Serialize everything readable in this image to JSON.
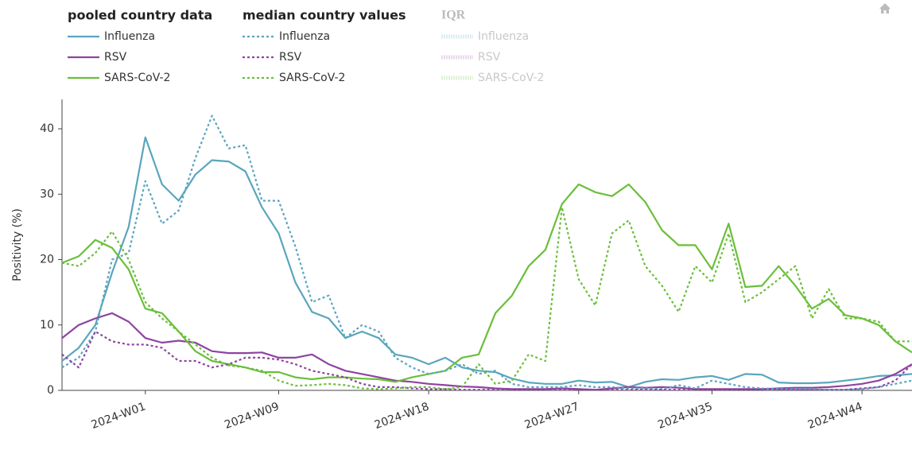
{
  "chart_data": {
    "type": "line",
    "y_label": "Positivity (%)",
    "xlim": [
      -5,
      46
    ],
    "ylim": [
      0,
      44.5
    ],
    "yticks": [
      0,
      10,
      20,
      30,
      40
    ],
    "xticks": [
      {
        "value": 0,
        "label": "2024-W01"
      },
      {
        "value": 8,
        "label": "2024-W09"
      },
      {
        "value": 17,
        "label": "2024-W18"
      },
      {
        "value": 26,
        "label": "2024-W27"
      },
      {
        "value": 34,
        "label": "2024-W35"
      },
      {
        "value": 43,
        "label": "2024-W44"
      }
    ],
    "x": [
      -5,
      -4,
      -3,
      -2,
      -1,
      0,
      1,
      2,
      3,
      4,
      5,
      6,
      7,
      8,
      9,
      10,
      11,
      12,
      13,
      14,
      15,
      16,
      17,
      18,
      19,
      20,
      21,
      22,
      23,
      24,
      25,
      26,
      27,
      28,
      29,
      30,
      31,
      32,
      33,
      34,
      35,
      36,
      37,
      38,
      39,
      40,
      41,
      42,
      43,
      44,
      45,
      46
    ],
    "legend_groups": [
      {
        "title": "pooled country data",
        "dash": "solid"
      },
      {
        "title": "median country values",
        "dash": "dotted"
      },
      {
        "title": "IQR",
        "hidden": true,
        "entries": [
          "Influenza",
          "RSV",
          "SARS-CoV-2"
        ]
      }
    ],
    "series": [
      {
        "name": "Influenza",
        "group": 0,
        "color": "#5aa5be",
        "values": [
          4.5,
          6.5,
          10,
          18,
          25,
          38.7,
          31.5,
          29,
          33,
          35.2,
          35,
          33.5,
          28,
          24,
          16.5,
          12,
          11,
          8,
          9,
          8,
          5.5,
          5,
          4,
          5,
          3.5,
          3,
          2.8,
          1.8,
          1.2,
          1,
          1,
          1.5,
          1.2,
          1.3,
          0.5,
          1.3,
          1.7,
          1.6,
          2,
          2.2,
          1.6,
          2.5,
          2.4,
          1.2,
          1.1,
          1.1,
          1.2,
          1.5,
          1.8,
          2.2,
          2.3,
          2.5
        ]
      },
      {
        "name": "RSV",
        "group": 0,
        "color": "#8e44a0",
        "values": [
          8,
          10,
          11,
          11.8,
          10.5,
          8,
          7.3,
          7.6,
          7.3,
          6,
          5.7,
          5.7,
          5.8,
          5,
          5,
          5.5,
          4,
          3,
          2.5,
          2,
          1.5,
          1.3,
          1,
          0.8,
          0.6,
          0.5,
          0.3,
          0.2,
          0.2,
          0.2,
          0.3,
          0.2,
          0.1,
          0.3,
          0.5,
          0.4,
          0.5,
          0.4,
          0.2,
          0.2,
          0.2,
          0.2,
          0.2,
          0.3,
          0.4,
          0.4,
          0.5,
          0.7,
          1,
          1.5,
          2.5,
          4
        ]
      },
      {
        "name": "SARS-CoV-2",
        "group": 0,
        "color": "#6abf3a",
        "values": [
          19.5,
          20.5,
          23,
          21.8,
          18.5,
          12.5,
          11.8,
          9,
          6,
          4.5,
          4,
          3.5,
          2.8,
          2.8,
          2,
          1.7,
          2,
          2,
          1.8,
          1.7,
          1.3,
          2,
          2.5,
          3,
          5,
          5.5,
          11.8,
          14.5,
          19,
          21.5,
          28.5,
          31.5,
          30.3,
          29.7,
          31.5,
          28.8,
          24.5,
          22.2,
          22.2,
          18.5,
          25.5,
          15.8,
          16,
          19,
          16,
          12.5,
          14,
          11.5,
          11,
          10,
          7.5,
          5.8
        ]
      },
      {
        "name": "Influenza",
        "group": 1,
        "color": "#5aa5be",
        "values": [
          3.5,
          5,
          9,
          20,
          21,
          32,
          25.5,
          27.5,
          35.5,
          42,
          37,
          37.5,
          29,
          29,
          22,
          13.5,
          14.5,
          8,
          10,
          9,
          5,
          3.5,
          2.5,
          3,
          4,
          2.5,
          3,
          1,
          0.5,
          0.5,
          0.5,
          0.8,
          0.5,
          0.5,
          0.3,
          0.3,
          0.2,
          0.8,
          0.3,
          1.5,
          1,
          0.5,
          0.3,
          0.2,
          0.2,
          0.2,
          0.1,
          0.1,
          0.2,
          0.5,
          1,
          1.5
        ]
      },
      {
        "name": "RSV",
        "group": 1,
        "color": "#8e44a0",
        "values": [
          5.5,
          3.5,
          9,
          7.5,
          7,
          7,
          6.5,
          4.5,
          4.5,
          3.5,
          4,
          5,
          5,
          4.7,
          4,
          3,
          2.5,
          2,
          1,
          0.5,
          0.5,
          0.3,
          0.2,
          0.2,
          0.1,
          0.1,
          0.1,
          0.1,
          0.1,
          0.1,
          0.1,
          0.1,
          0.1,
          0.1,
          0.1,
          0.1,
          0.1,
          0.1,
          0.1,
          0.1,
          0.1,
          0.1,
          0.1,
          0.1,
          0.1,
          0.1,
          0.1,
          0.1,
          0.3,
          0.5,
          1.5,
          4
        ]
      },
      {
        "name": "SARS-CoV-2",
        "group": 1,
        "color": "#6abf3a",
        "values": [
          19.5,
          19,
          21,
          24.3,
          20,
          13.5,
          11,
          9,
          7,
          5,
          3.8,
          3.5,
          3,
          1.5,
          0.7,
          0.8,
          1,
          0.8,
          0.3,
          0.2,
          0.3,
          0.5,
          0.5,
          0.2,
          0.5,
          4,
          1,
          1.5,
          5.5,
          4.5,
          28,
          17,
          13,
          24,
          26,
          19,
          16,
          12,
          19,
          16.5,
          24,
          13.5,
          15,
          17,
          19,
          11,
          15.5,
          11,
          11,
          10.5,
          7.5,
          7.5
        ]
      }
    ]
  }
}
